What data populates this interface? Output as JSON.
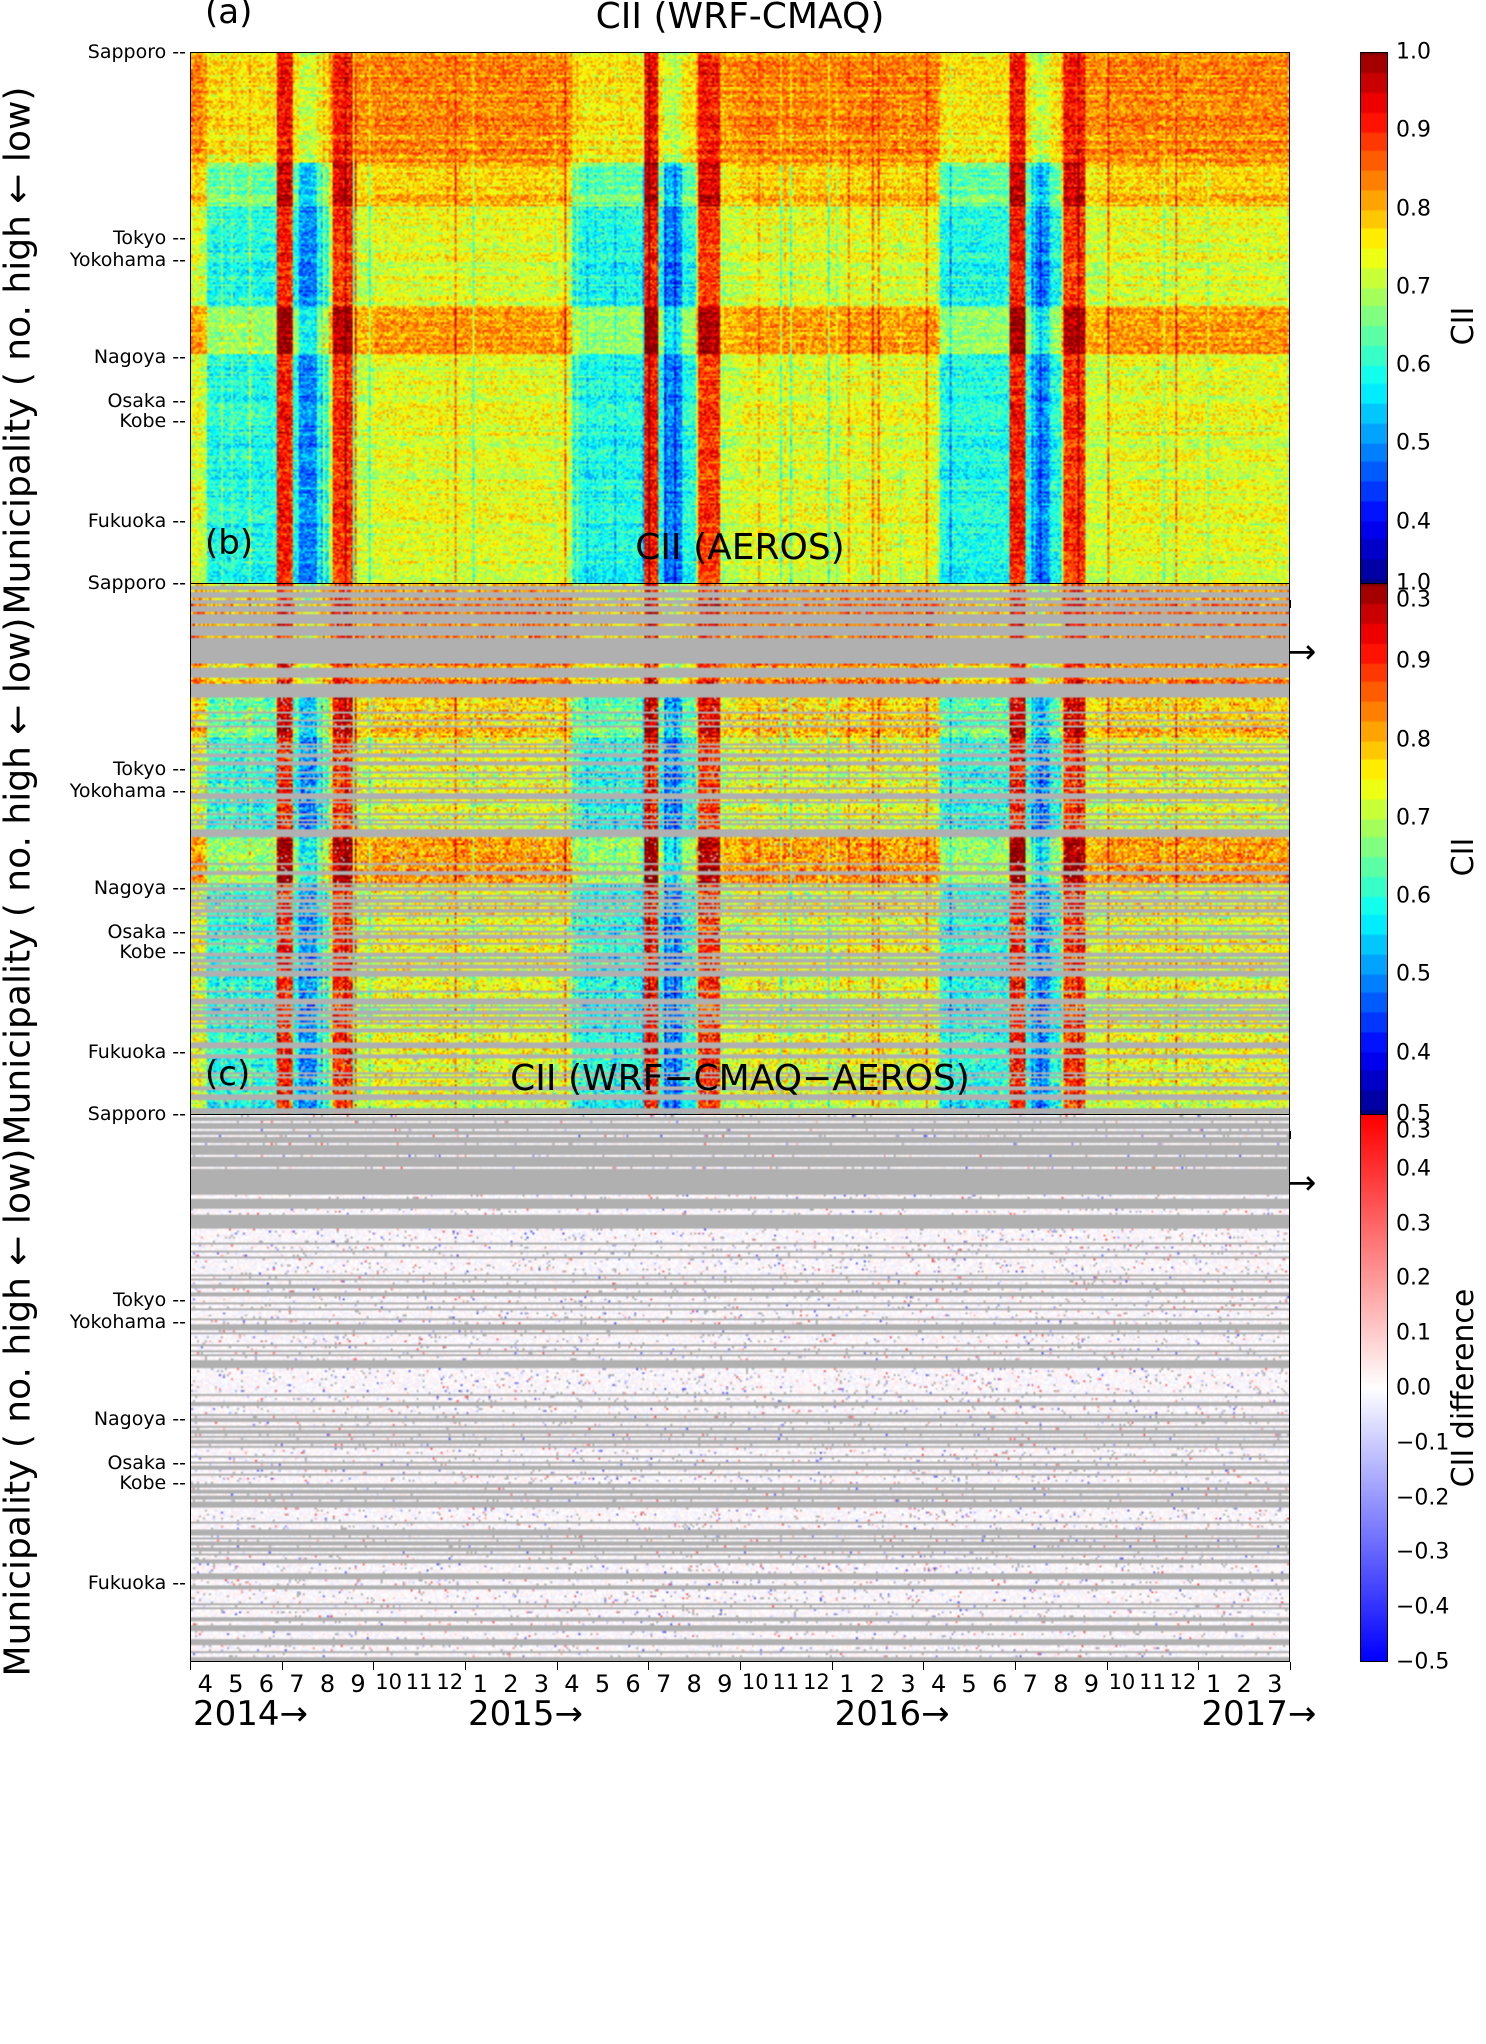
{
  "chart_data": [
    {
      "type": "heatmap",
      "panel_label": "(a)",
      "title": "CII (WRF-CMAQ)",
      "ylabel": "Municipality ( no. high ← low)",
      "colorbar_label": "CII",
      "colormap": "jet",
      "clim": [
        0.3,
        1.0
      ],
      "colorbar_ticks": [
        "1.0",
        "0.9",
        "0.8",
        "0.7",
        "0.6",
        "0.5",
        "0.4",
        "0.3"
      ],
      "missing_color": "#b0b0b0",
      "has_missing": false
    },
    {
      "type": "heatmap",
      "panel_label": "(b)",
      "title": "CII (AEROS)",
      "ylabel": "Municipality ( no. high ← low)",
      "colorbar_label": "CII",
      "colormap": "jet",
      "clim": [
        0.3,
        1.0
      ],
      "colorbar_ticks": [
        "1.0",
        "0.9",
        "0.8",
        "0.7",
        "0.6",
        "0.5",
        "0.4",
        "0.3"
      ],
      "missing_color": "#b0b0b0",
      "has_missing": true
    },
    {
      "type": "heatmap",
      "panel_label": "(c)",
      "title": "CII (WRF−CMAQ−AEROS)",
      "ylabel": "Municipality ( no. high ← low)",
      "colorbar_label": "CII difference",
      "colormap": "bwr",
      "clim": [
        -0.5,
        0.5
      ],
      "colorbar_ticks": [
        "0.5",
        "0.4",
        "0.3",
        "0.2",
        "0.1",
        "0.0",
        "−0.1",
        "−0.2",
        "−0.3",
        "−0.4",
        "−0.5"
      ],
      "missing_color": "#b0b0b0",
      "has_missing": true
    }
  ],
  "y_tick_labels": [
    "Sapporo --",
    "Tokyo --",
    "Yokohama --",
    "Nagoya --",
    "Osaka --",
    "Kobe --",
    "Fukuoka --"
  ],
  "x_month_labels": [
    "4",
    "5",
    "6",
    "7",
    "8",
    "9",
    "10",
    "11",
    "12",
    "1",
    "2",
    "3",
    "4",
    "5",
    "6",
    "7",
    "8",
    "9",
    "10",
    "11",
    "12",
    "1",
    "2",
    "3",
    "4",
    "5",
    "6",
    "7",
    "8",
    "9",
    "10",
    "11",
    "12",
    "1",
    "2",
    "3"
  ],
  "x_year_labels": [
    "2014→",
    "2015→",
    "2016→",
    "2017→"
  ],
  "x_range": [
    "2014-04",
    "2017-03"
  ]
}
